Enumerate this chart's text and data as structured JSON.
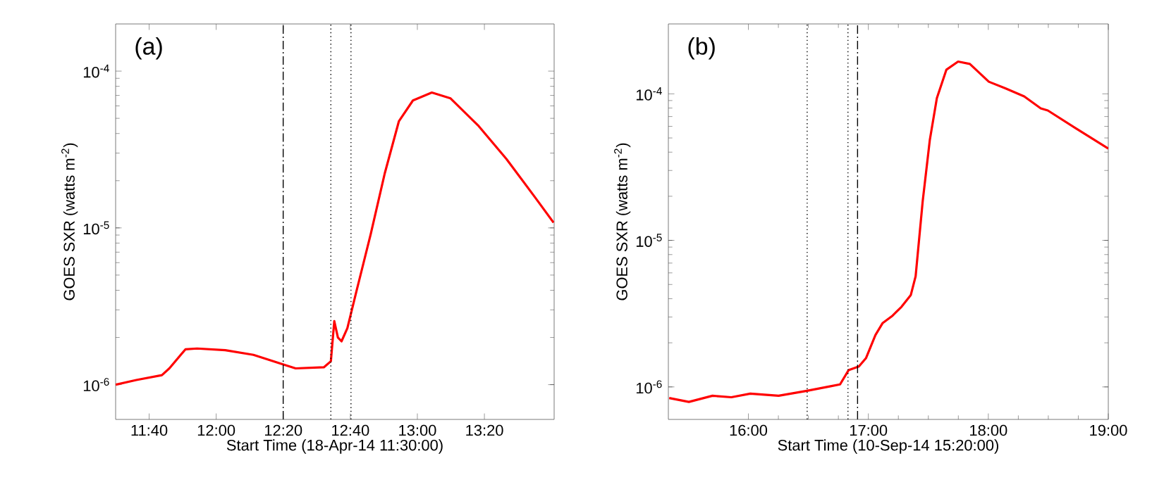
{
  "chart_data": [
    {
      "type": "line",
      "annotations": [
        "(a)"
      ],
      "xlabel": "Start Time (18-Apr-14 11:30:00)",
      "ylabel": "GOES SXR (watts m$^{-2}$)",
      "log": "y",
      "xlim": [
        11.5,
        13.68
      ],
      "ylim": [
        6e-07,
        0.0002
      ],
      "xticks": [
        {
          "value": 11.6667,
          "label": "11:40"
        },
        {
          "value": 12.0,
          "label": "12:00"
        },
        {
          "value": 12.3333,
          "label": "12:20"
        },
        {
          "value": 12.6667,
          "label": "12:40"
        },
        {
          "value": 13.0,
          "label": "13:00"
        },
        {
          "value": 13.3333,
          "label": "13:20"
        }
      ],
      "yticks": [
        {
          "value": 1e-06,
          "label": "10$^{-6}$"
        },
        {
          "value": 1e-05,
          "label": "10$^{-5}$"
        },
        {
          "value": 0.0001,
          "label": "10$^{-4}$"
        }
      ],
      "ref_lines": [
        {
          "axis": "x",
          "value": 12.333,
          "line_style": "dashdot"
        },
        {
          "axis": "x",
          "value": 12.57,
          "line_style": "dotted"
        },
        {
          "axis": "x",
          "value": 12.67,
          "line_style": "dotted"
        }
      ],
      "x": [
        11.5,
        11.603,
        11.73,
        11.767,
        11.847,
        11.905,
        12.045,
        12.185,
        12.337,
        12.395,
        12.535,
        12.57,
        12.587,
        12.605,
        12.623,
        12.652,
        12.698,
        12.768,
        12.838,
        12.908,
        12.978,
        13.072,
        13.165,
        13.305,
        13.443,
        13.583,
        13.677
      ],
      "series": [
        {
          "color": "#ff0000",
          "values": [
            1e-06,
            1.07e-06,
            1.15e-06,
            1.27e-06,
            1.68e-06,
            1.7e-06,
            1.66e-06,
            1.55e-06,
            1.34e-06,
            1.27e-06,
            1.29e-06,
            1.41e-06,
            2.54e-06,
            2e-06,
            1.89e-06,
            2.29e-06,
            3.98e-06,
            9.1e-06,
            2.23e-05,
            4.78e-05,
            6.5e-05,
            7.3e-05,
            6.7e-05,
            4.46e-05,
            2.75e-05,
            1.58e-05,
            1.08e-05
          ]
        }
      ]
    },
    {
      "type": "line",
      "annotations": [
        "(b)"
      ],
      "xlabel": "Start Time (10-Sep-14 15:20:00)",
      "ylabel": "GOES SXR (watts m$^{-2}$)",
      "log": "y",
      "xlim": [
        15.333,
        19.0
      ],
      "ylim": [
        6e-07,
        0.0003
      ],
      "xticks": [
        {
          "value": 16.0,
          "label": "16:00"
        },
        {
          "value": 17.0,
          "label": "17:00"
        },
        {
          "value": 18.0,
          "label": "18:00"
        },
        {
          "value": 19.0,
          "label": "19:00"
        }
      ],
      "yticks": [
        {
          "value": 1e-06,
          "label": "10$^{-6}$"
        },
        {
          "value": 1e-05,
          "label": "10$^{-5}$"
        },
        {
          "value": 0.0001,
          "label": "10$^{-4}$"
        }
      ],
      "ref_lines": [
        {
          "axis": "x",
          "value": 16.49,
          "line_style": "dotted"
        },
        {
          "axis": "x",
          "value": 16.83,
          "line_style": "dotted"
        },
        {
          "axis": "x",
          "value": 16.91,
          "line_style": "dashdot"
        }
      ],
      "x": [
        15.34,
        15.504,
        15.701,
        15.858,
        16.016,
        16.252,
        16.488,
        16.685,
        16.764,
        16.835,
        16.921,
        16.98,
        17.059,
        17.118,
        17.197,
        17.276,
        17.354,
        17.394,
        17.453,
        17.512,
        17.571,
        17.65,
        17.748,
        17.846,
        18.004,
        18.142,
        18.299,
        18.437,
        18.496,
        18.732,
        19.0
      ],
      "series": [
        {
          "color": "#ff0000",
          "values": [
            8.4e-07,
            7.9e-07,
            8.7e-07,
            8.5e-07,
            9e-07,
            8.7e-07,
            9.4e-07,
            1.01e-06,
            1.04e-06,
            1.3e-06,
            1.38e-06,
            1.57e-06,
            2.26e-06,
            2.72e-06,
            3.04e-06,
            3.52e-06,
            4.24e-06,
            5.69e-06,
            1.85e-05,
            4.82e-05,
            9.35e-05,
            0.000146,
            0.000166,
            0.00016,
            0.000121,
            0.000109,
            9.6e-05,
            7.96e-05,
            7.7e-05,
            5.8e-05,
            4.23e-05
          ]
        }
      ]
    }
  ]
}
